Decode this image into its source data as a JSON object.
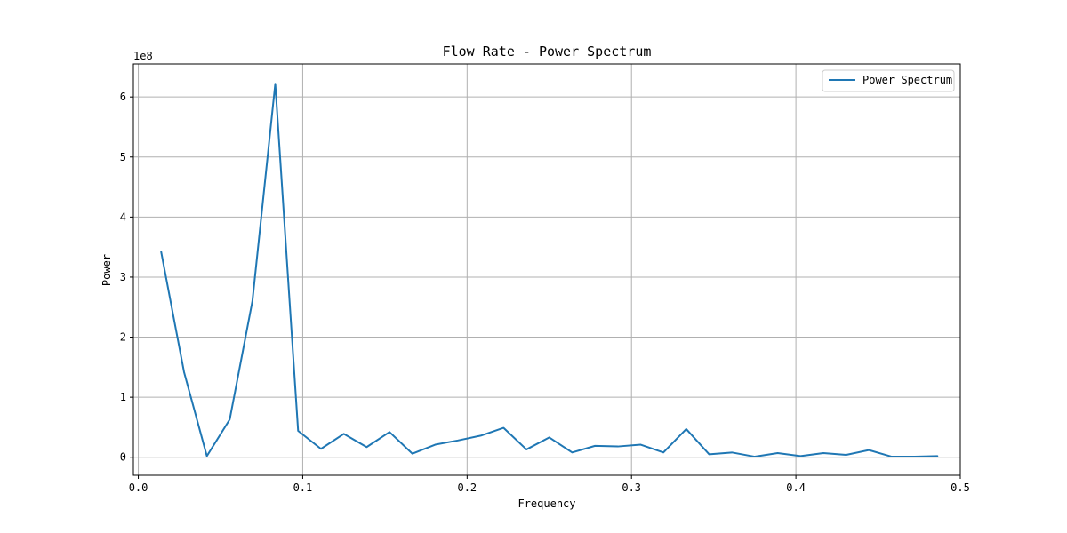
{
  "chart_data": {
    "type": "line",
    "title": "Flow Rate - Power Spectrum",
    "xlabel": "Frequency",
    "ylabel": "Power",
    "y_offset_text": "1e8",
    "xlim": [
      -0.003,
      0.5
    ],
    "ylim": [
      -0.3,
      6.55
    ],
    "y_scale_factor": 100000000,
    "xticks": [
      0.0,
      0.1,
      0.2,
      0.3,
      0.4,
      0.5
    ],
    "xtick_labels": [
      "0.0",
      "0.1",
      "0.2",
      "0.3",
      "0.4",
      "0.5"
    ],
    "yticks": [
      0,
      1,
      2,
      3,
      4,
      5,
      6
    ],
    "ytick_labels": [
      "0",
      "1",
      "2",
      "3",
      "4",
      "5",
      "6"
    ],
    "grid": true,
    "legend_position": "top-right",
    "series": [
      {
        "name": "Power Spectrum",
        "color": "#1f77b4",
        "x": [
          0.0139,
          0.0278,
          0.0417,
          0.0556,
          0.0694,
          0.0833,
          0.0972,
          0.1111,
          0.125,
          0.1389,
          0.1528,
          0.1667,
          0.1806,
          0.1944,
          0.2083,
          0.2222,
          0.2361,
          0.25,
          0.2639,
          0.2778,
          0.2917,
          0.3056,
          0.3194,
          0.3333,
          0.3472,
          0.3611,
          0.375,
          0.3889,
          0.4028,
          0.4167,
          0.4306,
          0.4444,
          0.4583,
          0.4722,
          0.4861
        ],
        "y": [
          3.42,
          1.42,
          0.02,
          0.63,
          2.6,
          6.22,
          0.44,
          0.14,
          0.39,
          0.17,
          0.42,
          0.06,
          0.21,
          0.28,
          0.36,
          0.49,
          0.13,
          0.33,
          0.08,
          0.19,
          0.18,
          0.21,
          0.08,
          0.47,
          0.05,
          0.08,
          0.01,
          0.07,
          0.02,
          0.07,
          0.04,
          0.12,
          0.01,
          0.01,
          0.02
        ]
      }
    ]
  }
}
